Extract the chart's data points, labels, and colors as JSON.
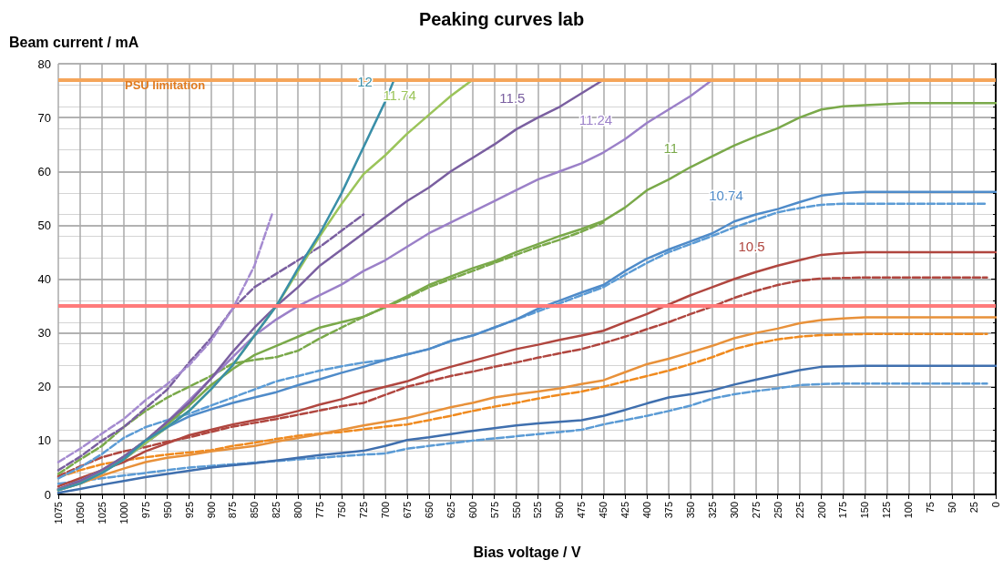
{
  "chart_data": {
    "type": "line",
    "title": "Peaking curves lab",
    "xlabel": "Bias voltage / V",
    "ylabel": "Beam current / mA",
    "xlim": [
      1075,
      0
    ],
    "ylim": [
      0,
      80
    ],
    "xticks": [
      1075,
      1050,
      1025,
      1000,
      975,
      950,
      925,
      900,
      875,
      850,
      825,
      800,
      775,
      750,
      725,
      700,
      675,
      650,
      625,
      600,
      575,
      550,
      525,
      500,
      475,
      450,
      425,
      400,
      375,
      350,
      325,
      300,
      275,
      250,
      225,
      200,
      175,
      150,
      125,
      100,
      75,
      50,
      25,
      0
    ],
    "yticks": [
      0,
      10,
      20,
      30,
      40,
      50,
      60,
      70,
      80
    ],
    "grid": true,
    "marker": "none",
    "line_style": "solid",
    "x": [
      1075,
      1050,
      1025,
      1000,
      975,
      950,
      925,
      900,
      875,
      850,
      825,
      800,
      775,
      750,
      725,
      700,
      675,
      650,
      625,
      600,
      575,
      550,
      525,
      500,
      475,
      450,
      425,
      400,
      375,
      350,
      325,
      300,
      275,
      250,
      225,
      200,
      175,
      150,
      0
    ],
    "ref_lines": [
      {
        "axis": "y",
        "value": 77,
        "label": "PSU limitation",
        "color": "#f5a55a"
      },
      {
        "axis": "y",
        "value": 35,
        "label": null,
        "color": "#ff7b7b"
      }
    ],
    "annotations": [
      {
        "text": "12",
        "x": 700,
        "y": 73
      },
      {
        "text": "11.74",
        "x": 650,
        "y": 70.5
      },
      {
        "text": "11.5",
        "x": 525,
        "y": 70
      },
      {
        "text": "11.24",
        "x": 425,
        "y": 66
      },
      {
        "text": "11",
        "x": 350,
        "y": 60.8
      },
      {
        "text": "10.74",
        "x": 275,
        "y": 52
      },
      {
        "text": "10.5",
        "x": 250,
        "y": 42.5
      }
    ],
    "series": [
      {
        "color": "#3a8fa8",
        "x": [
          1075,
          1050,
          1025,
          1000,
          975,
          950,
          925,
          900,
          875,
          850,
          825,
          800,
          775,
          750,
          725,
          700,
          690
        ],
        "values": [
          0.8,
          2,
          4,
          6.5,
          10,
          12.5,
          15.5,
          19.5,
          24,
          29.5,
          35,
          42,
          48.5,
          56,
          64.5,
          73,
          77
        ]
      },
      {
        "color": "#9bc45a",
        "x": [
          1075,
          1050,
          1025,
          1000,
          975,
          950,
          925,
          900,
          875,
          850,
          825,
          800,
          775,
          750,
          725,
          700,
          675,
          650,
          625,
          600
        ],
        "values": [
          0.8,
          2,
          4,
          6.5,
          9.5,
          12.5,
          15.5,
          19.5,
          24,
          29.5,
          35,
          41.5,
          48,
          54,
          59.5,
          63,
          67,
          70.5,
          74,
          77
        ]
      },
      {
        "color": "#7a5fa0",
        "x": [
          1075,
          1050,
          1025,
          1000,
          975,
          950,
          925,
          900,
          875,
          850,
          825,
          800,
          775,
          750,
          725,
          700,
          675,
          650,
          625,
          600,
          575,
          550,
          525,
          500,
          475,
          450
        ],
        "values": [
          1,
          2.5,
          4.5,
          7,
          10,
          13.5,
          17,
          21.5,
          26.5,
          31,
          35,
          38.5,
          42.5,
          45.5,
          48.5,
          51.5,
          54.5,
          57,
          60,
          62.5,
          65,
          67.8,
          70,
          72,
          74.5,
          77
        ]
      },
      {
        "color": "#9b80c8",
        "x": [
          1075,
          1050,
          1025,
          1000,
          975,
          950,
          925,
          900,
          875,
          850,
          825,
          800,
          775,
          750,
          725,
          700,
          675,
          650,
          625,
          600,
          575,
          550,
          525,
          500,
          475,
          450,
          425,
          400,
          375,
          350,
          325
        ],
        "values": [
          1,
          2.5,
          4.5,
          7,
          10,
          13.5,
          17.5,
          21.5,
          25.5,
          29.5,
          32.5,
          35,
          37,
          39,
          41.5,
          43.5,
          46,
          48.5,
          50.5,
          52.5,
          54.5,
          56.5,
          58.5,
          60,
          61.5,
          63.5,
          66,
          69,
          71.5,
          74,
          77
        ]
      },
      {
        "color": "#7aa94a",
        "x": [
          1075,
          1050,
          1025,
          1000,
          975,
          950,
          925,
          900,
          875,
          850,
          825,
          800,
          775,
          750,
          725,
          700,
          675,
          650,
          625,
          600,
          575,
          550,
          525,
          500,
          475,
          450,
          425,
          400,
          375,
          350,
          325,
          300,
          275,
          250,
          225,
          200,
          175,
          150,
          100,
          0
        ],
        "values": [
          1,
          2.5,
          4.5,
          7,
          10,
          13,
          16.5,
          20.3,
          23.3,
          25.9,
          27.6,
          29.3,
          31,
          32,
          33,
          34.8,
          36.8,
          38.9,
          40.5,
          42,
          43.3,
          45,
          46.5,
          48,
          49.3,
          50.8,
          53.3,
          56.5,
          58.5,
          60.8,
          62.8,
          64.8,
          66.5,
          68,
          70,
          71.5,
          72.1,
          72.3,
          72.7,
          72.7
        ]
      },
      {
        "color": "#4f8bc9",
        "values": [
          1,
          2.3,
          4,
          6.5,
          9.5,
          12.5,
          14.5,
          15.8,
          17,
          18,
          19,
          20.3,
          21.4,
          22.6,
          23.7,
          25,
          26,
          27,
          28.5,
          29.5,
          31,
          32.5,
          34.5,
          36,
          37.5,
          38.9,
          41.5,
          43.8,
          45.5,
          47,
          48.5,
          50.7,
          52,
          53,
          54.3,
          55.5,
          56,
          56.2,
          56.2
        ]
      },
      {
        "color": "#b0463f",
        "values": [
          1.5,
          3,
          4.5,
          6,
          8,
          9.5,
          11,
          12,
          13,
          13.8,
          14.5,
          15.5,
          16.7,
          17.7,
          19,
          20,
          21,
          22.5,
          23.7,
          24.8,
          25.9,
          27,
          27.8,
          28.7,
          29.5,
          30.4,
          32,
          33.5,
          35.3,
          37,
          38.5,
          40,
          41.3,
          42.5,
          43.5,
          44.5,
          44.8,
          45,
          45
        ]
      },
      {
        "color": "#e8913a",
        "values": [
          0.8,
          2,
          3.5,
          4.8,
          6,
          6.8,
          7.3,
          8,
          8.5,
          9,
          9.8,
          10.5,
          11.2,
          12,
          12.8,
          13.5,
          14.2,
          15.2,
          16.2,
          17,
          18,
          18.6,
          19.1,
          19.7,
          20.5,
          21.2,
          22.7,
          24.2,
          25.2,
          26.4,
          27.6,
          29,
          30,
          30.8,
          31.8,
          32.4,
          32.7,
          32.9,
          32.9
        ]
      },
      {
        "color": "#3f6fae",
        "values": [
          0.3,
          1,
          1.8,
          2.5,
          3.2,
          3.8,
          4.4,
          5,
          5.4,
          5.8,
          6.3,
          6.8,
          7.3,
          7.7,
          8.1,
          9,
          10.1,
          10.6,
          11.2,
          11.8,
          12.3,
          12.8,
          13.2,
          13.5,
          13.8,
          14.6,
          15.7,
          16.9,
          18,
          18.6,
          19.3,
          20.4,
          21.3,
          22.2,
          23.1,
          23.7,
          23.8,
          23.9,
          23.9
        ]
      },
      {
        "color": "#a58bd0",
        "line_style": "dashed",
        "x": [
          1075,
          1050,
          1025,
          1000,
          975,
          950,
          925,
          900,
          875,
          850,
          830
        ],
        "values": [
          6,
          8.5,
          11.3,
          14,
          17.5,
          20.5,
          24,
          28.5,
          34.5,
          42.5,
          52
        ]
      },
      {
        "color": "#7a5fa0",
        "line_style": "dashed",
        "x": [
          1075,
          1050,
          1025,
          1000,
          975,
          950,
          925,
          900,
          875,
          850,
          825,
          800,
          775,
          750,
          725
        ],
        "values": [
          4.5,
          7,
          10,
          12.5,
          16,
          19.5,
          24.5,
          29,
          34.5,
          38.5,
          41,
          43.5,
          46,
          49,
          52
        ]
      },
      {
        "color": "#7aa94a",
        "line_style": "dashed",
        "x": [
          1075,
          1050,
          1025,
          1000,
          975,
          950,
          925,
          900,
          875,
          850,
          825,
          800,
          775,
          750,
          725,
          700,
          675,
          650,
          625,
          600,
          575,
          550,
          525,
          500,
          475,
          450
        ],
        "values": [
          3.8,
          6.5,
          9,
          12.5,
          15.5,
          18,
          20,
          22,
          24.3,
          25,
          25.5,
          26.7,
          29,
          31,
          33,
          34.8,
          36.5,
          38.5,
          40,
          41.5,
          43,
          44.5,
          46,
          47.3,
          48.8,
          50.5
        ]
      },
      {
        "color": "#5b9bd5",
        "line_style": "dashed",
        "x": [
          1075,
          1050,
          1025,
          1000,
          975,
          950,
          925,
          900,
          875,
          850,
          825,
          800,
          775,
          750,
          725,
          700,
          675,
          650,
          625,
          600,
          575,
          550,
          525,
          500,
          475,
          450,
          425,
          400,
          375,
          350,
          325,
          300,
          275,
          250,
          225,
          200,
          175,
          150,
          10
        ],
        "values": [
          3,
          5,
          7.5,
          10.5,
          12.5,
          13.8,
          15,
          16.5,
          18,
          19.5,
          21,
          22,
          23,
          23.8,
          24.5,
          25,
          26,
          27,
          28.5,
          29.5,
          31,
          32.5,
          34,
          35.5,
          37,
          38.5,
          40.8,
          43,
          45,
          46.5,
          48,
          49.6,
          51,
          52.4,
          53.2,
          53.8,
          54,
          54,
          54
        ]
      },
      {
        "color": "#b0463f",
        "line_style": "dashed",
        "x": [
          1075,
          1050,
          1025,
          1000,
          975,
          950,
          925,
          900,
          875,
          850,
          825,
          800,
          775,
          750,
          725,
          700,
          675,
          650,
          625,
          600,
          575,
          550,
          525,
          500,
          475,
          450,
          425,
          400,
          375,
          350,
          325,
          300,
          275,
          250,
          225,
          200,
          175,
          150,
          10
        ],
        "values": [
          3.4,
          5.2,
          6.9,
          8,
          8.8,
          9.8,
          10.6,
          11.6,
          12.6,
          13.3,
          14,
          14.8,
          15.6,
          16.4,
          17,
          18.5,
          20,
          21,
          22,
          22.8,
          23.7,
          24.5,
          25.4,
          26.2,
          27,
          28.1,
          29.3,
          30.7,
          32,
          33.5,
          34.9,
          36.5,
          37.8,
          38.9,
          39.7,
          40.1,
          40.2,
          40.3,
          40.3
        ]
      },
      {
        "color": "#f08a1e",
        "line_style": "dashed",
        "x": [
          1075,
          1050,
          1025,
          1000,
          975,
          950,
          925,
          900,
          875,
          850,
          825,
          800,
          775,
          750,
          725,
          700,
          675,
          650,
          625,
          600,
          575,
          550,
          525,
          500,
          475,
          450,
          425,
          400,
          375,
          350,
          325,
          300,
          275,
          250,
          225,
          200,
          175,
          150,
          10
        ],
        "values": [
          3.2,
          4.5,
          5.6,
          6.3,
          6.9,
          7.4,
          7.8,
          8.2,
          9,
          9.6,
          10.3,
          10.9,
          11.3,
          11.6,
          12.1,
          12.6,
          13,
          13.8,
          14.6,
          15.5,
          16.3,
          17,
          17.8,
          18.5,
          19.1,
          20,
          21,
          22,
          23,
          24.2,
          25.5,
          27,
          28,
          28.8,
          29.3,
          29.6,
          29.7,
          29.8,
          29.8
        ]
      },
      {
        "color": "#5b9bd5",
        "line_style": "dashed",
        "x": [
          1075,
          1050,
          1025,
          1000,
          975,
          950,
          925,
          900,
          875,
          850,
          825,
          800,
          775,
          750,
          725,
          700,
          675,
          650,
          625,
          600,
          575,
          550,
          525,
          500,
          475,
          450,
          425,
          400,
          375,
          350,
          325,
          300,
          275,
          250,
          225,
          200,
          175,
          150,
          10
        ],
        "values": [
          2,
          2.5,
          3,
          3.5,
          4,
          4.5,
          5,
          5.3,
          5.6,
          5.9,
          6.2,
          6.5,
          6.8,
          7.1,
          7.4,
          7.6,
          8.5,
          9,
          9.5,
          10,
          10.4,
          10.8,
          11.2,
          11.6,
          12,
          13,
          13.8,
          14.6,
          15.5,
          16.5,
          17.8,
          18.6,
          19.2,
          19.7,
          20.3,
          20.5,
          20.6,
          20.6,
          20.6
        ]
      }
    ]
  }
}
